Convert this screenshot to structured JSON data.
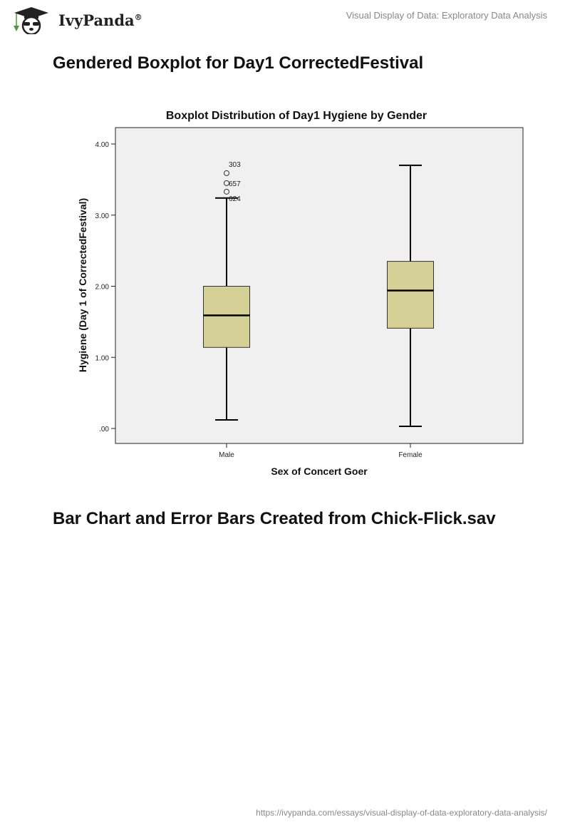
{
  "header": {
    "brand": "IvyPanda",
    "registered": "®",
    "doc_title": "Visual Display of Data: Exploratory Data Analysis"
  },
  "sections": [
    {
      "heading": "Gendered Boxplot for Day1 CorrectedFestival"
    },
    {
      "heading": "Bar Chart and Error Bars Created from Chick-Flick.sav"
    }
  ],
  "footer": {
    "url": "https://ivypanda.com/essays/visual-display-of-data-exploratory-data-analysis/"
  },
  "colors": {
    "box_fill": "#d5d095",
    "plot_bg": "#f0f0f0"
  },
  "chart_data": {
    "type": "boxplot",
    "title": "Boxplot Distribution of Day1 Hygiene by Gender",
    "xlabel": "Sex of Concert Goer",
    "ylabel": "Hygiene (Day 1 of CorrectedFestival)",
    "ylim": [
      0,
      4.2
    ],
    "yticks": [
      {
        "v": 0,
        "label": ".00"
      },
      {
        "v": 1,
        "label": "1.00"
      },
      {
        "v": 2,
        "label": "2.00"
      },
      {
        "v": 3,
        "label": "3.00"
      },
      {
        "v": 4,
        "label": "4.00"
      }
    ],
    "categories": [
      "Male",
      "Female"
    ],
    "boxes": [
      {
        "name": "Male",
        "min": 0.12,
        "q1": 1.14,
        "median": 1.59,
        "q3": 2.0,
        "max": 3.24,
        "outliers": [
          {
            "v": 3.59,
            "label": "303"
          },
          {
            "v": 3.45,
            "label": "657"
          },
          {
            "v": 3.33,
            "label": ""
          },
          {
            "v": 3.24,
            "label": "624"
          }
        ]
      },
      {
        "name": "Female",
        "min": 0.03,
        "q1": 1.41,
        "median": 1.94,
        "q3": 2.35,
        "max": 3.7,
        "outliers": []
      }
    ]
  }
}
